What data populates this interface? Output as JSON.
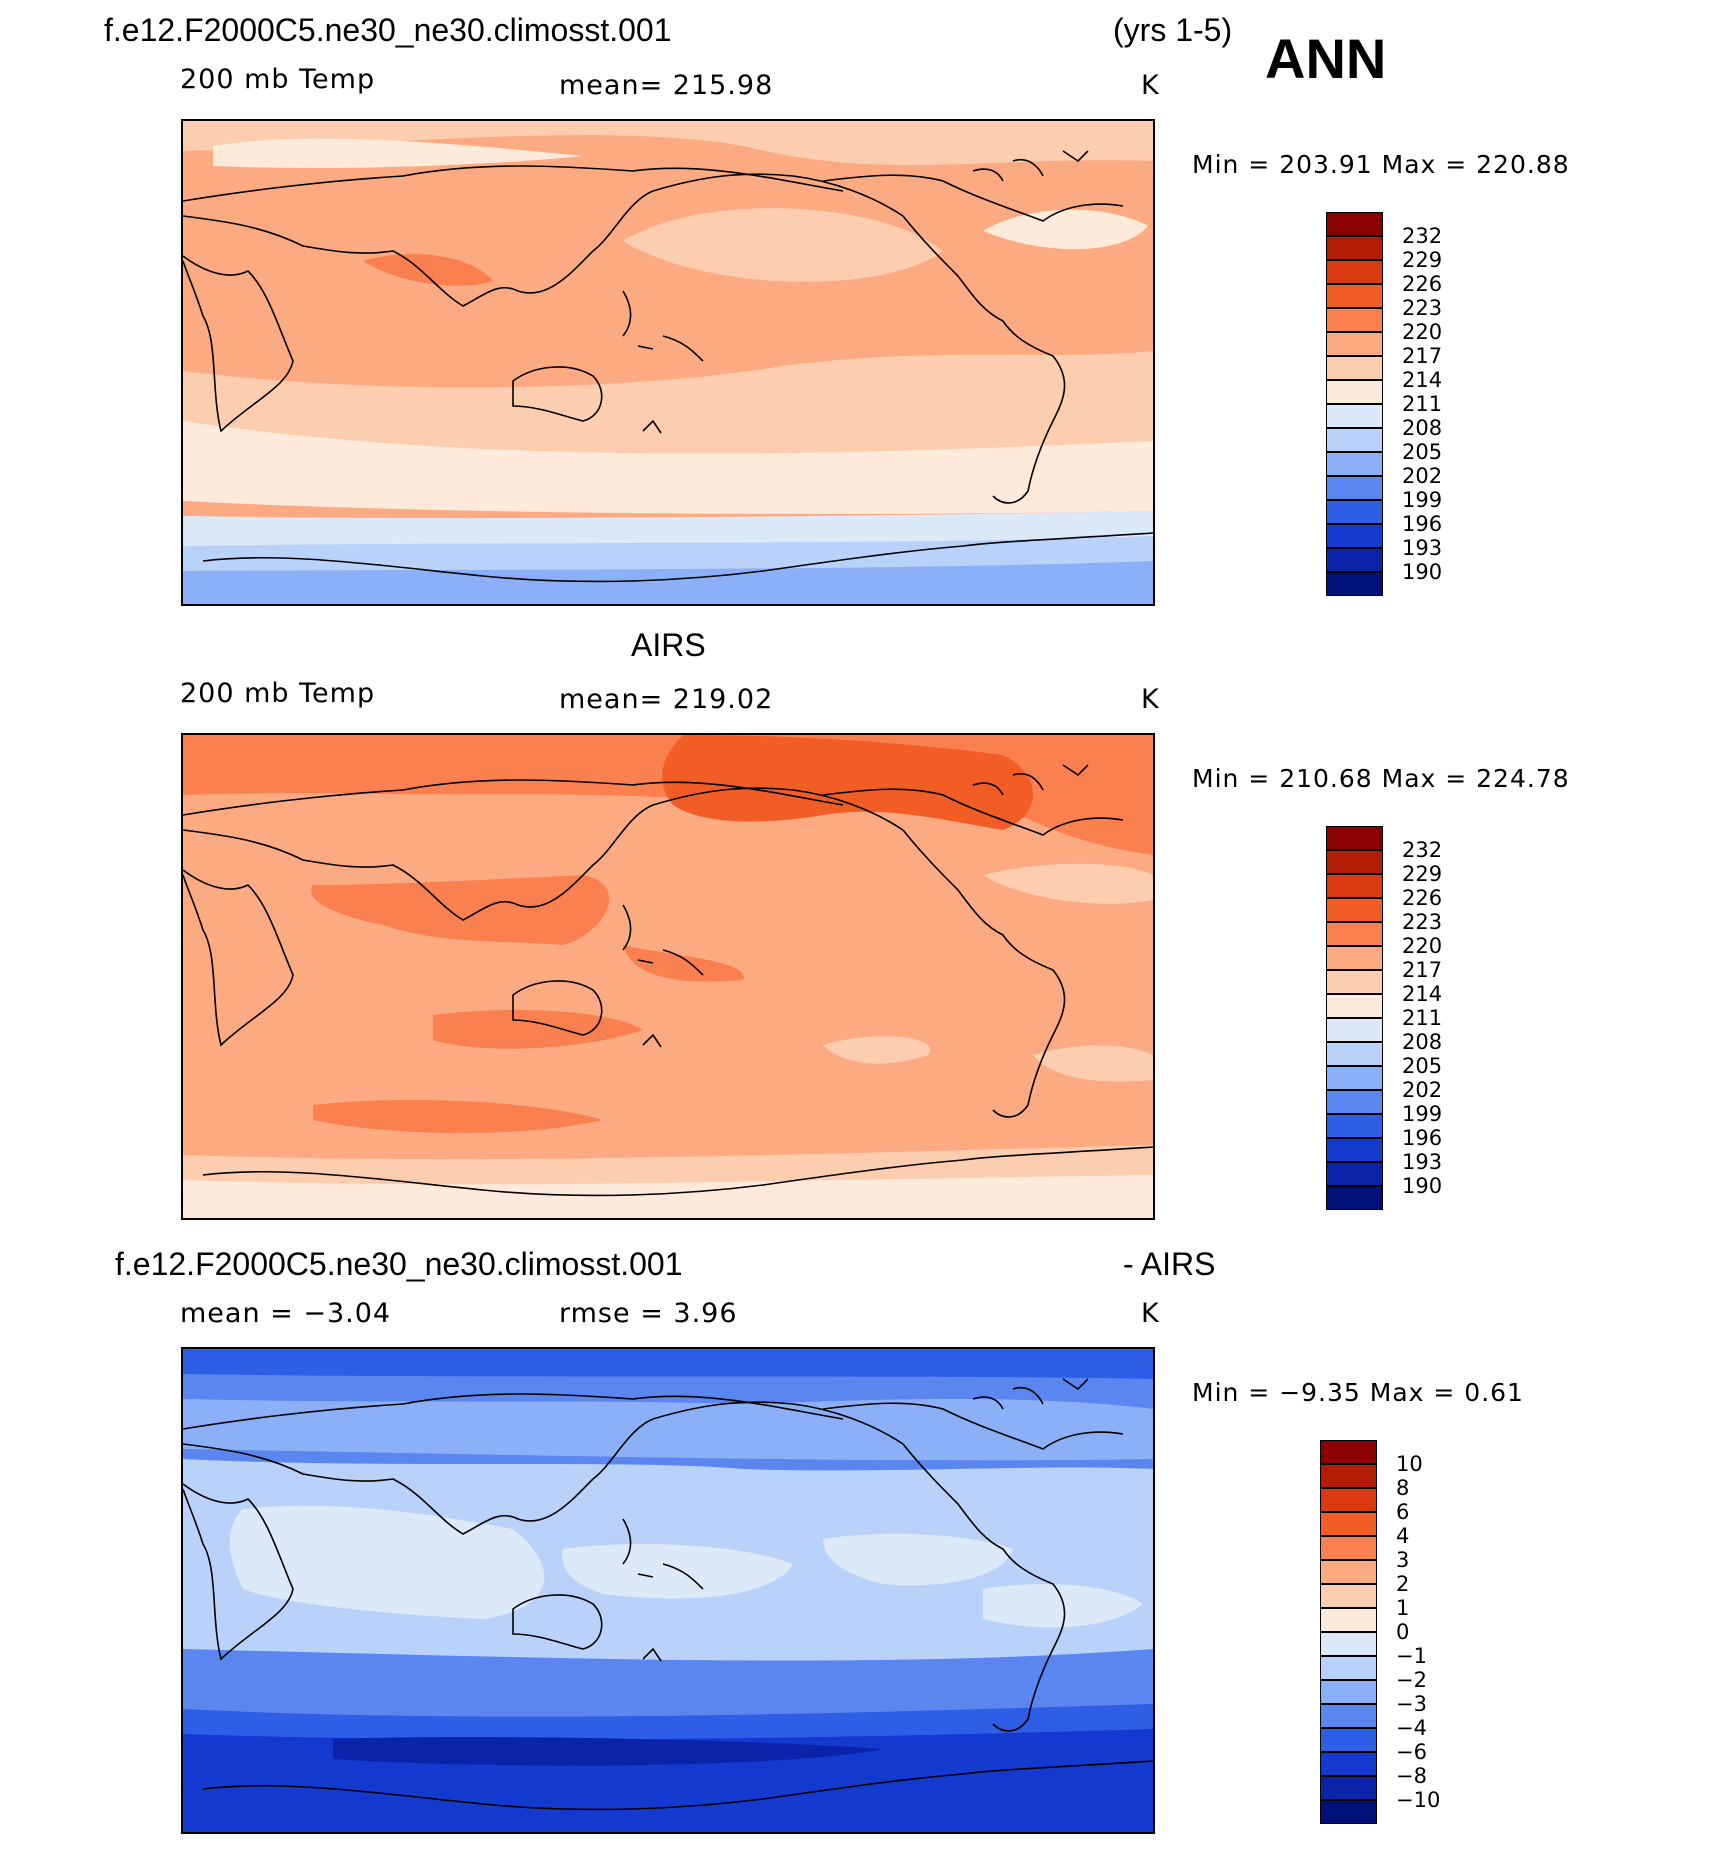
{
  "header": {
    "case": "f.e12.F2000C5.ne30_ne30.climosst.001",
    "years": "(yrs 1-5)",
    "season": "ANN"
  },
  "panels": [
    {
      "id": "model",
      "variable": "200 mb Temp",
      "stat": "mean=  215.98",
      "units": "K",
      "minmax": "Min  =  203.91  Max  =  220.88"
    },
    {
      "id": "obs",
      "title": "AIRS",
      "variable": "200 mb Temp",
      "stat": "mean=  219.02",
      "units": "K",
      "minmax": "Min  =  210.68  Max  =  224.78"
    },
    {
      "id": "diff",
      "title_left": "f.e12.F2000C5.ne30_ne30.climosst.001",
      "title_right": "- AIRS",
      "stat_left": "mean  =   −3.04",
      "stat_right": "rmse  =     3.96",
      "units": "K",
      "minmax": "Min  =    −9.35  Max  =     0.61"
    }
  ],
  "colorbars": {
    "temp": {
      "labels": [
        "232",
        "229",
        "226",
        "223",
        "220",
        "217",
        "214",
        "211",
        "208",
        "205",
        "202",
        "199",
        "196",
        "193",
        "190"
      ],
      "colors": [
        "#8b0000",
        "#b31c05",
        "#d93a10",
        "#f25c25",
        "#fb8050",
        "#fcaa82",
        "#fdcdb0",
        "#feeadb",
        "#dbe9f8",
        "#b8d2fa",
        "#8cb0f7",
        "#5b86f0",
        "#2e5de6",
        "#1339cf",
        "#0a23a8",
        "#00127a"
      ]
    },
    "diff": {
      "labels": [
        "10",
        "8",
        "6",
        "4",
        "3",
        "2",
        "1",
        "0",
        "−1",
        "−2",
        "−3",
        "−4",
        "−6",
        "−8",
        "−10"
      ],
      "colors": [
        "#8b0000",
        "#b31c05",
        "#d93a10",
        "#f25c25",
        "#fb8050",
        "#fcaa82",
        "#fdcdb0",
        "#feeadb",
        "#dbe9f8",
        "#b8d2fa",
        "#8cb0f7",
        "#5b86f0",
        "#2e5de6",
        "#1339cf",
        "#0a23a8",
        "#00127a"
      ]
    }
  }
}
